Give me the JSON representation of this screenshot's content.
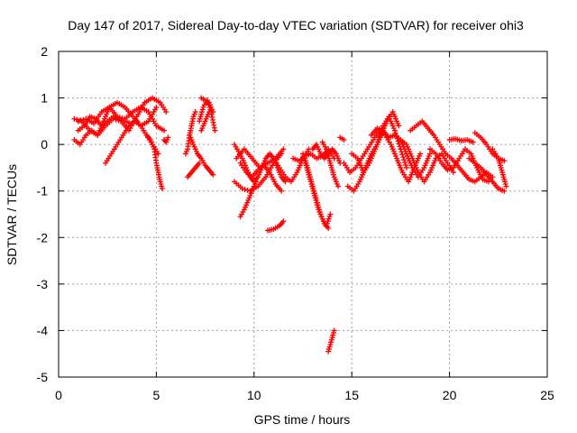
{
  "chart_data": {
    "type": "scatter",
    "title": "Day 147 of 2017, Sidereal Day-to-day VTEC variation (SDTVAR) for receiver ohi3",
    "xlabel": "GPS time / hours",
    "ylabel": "SDTVAR / TECUs",
    "xlim": [
      0,
      25
    ],
    "ylim": [
      -5,
      2
    ],
    "xticks": [
      0,
      5,
      10,
      15,
      20,
      25
    ],
    "yticks": [
      2,
      1,
      0,
      -1,
      -2,
      -3,
      -4,
      -5
    ],
    "grid": true,
    "marker": "+",
    "series_color": "#ff0000",
    "tracks": [
      {
        "x": [
          0.8,
          1.2,
          1.6,
          2.0,
          2.4,
          2.8,
          3.2,
          3.6,
          4.0,
          4.4,
          4.8,
          5.2,
          5.5
        ],
        "y": [
          0.55,
          0.5,
          0.3,
          0.2,
          0.4,
          0.55,
          0.5,
          0.3,
          0.6,
          0.9,
          1.0,
          0.9,
          0.7
        ]
      },
      {
        "x": [
          0.8,
          1.1,
          1.4,
          1.7,
          2.0,
          2.3,
          2.6,
          3.0,
          3.4,
          3.8,
          4.2,
          4.6,
          5.0
        ],
        "y": [
          0.1,
          0.0,
          0.2,
          0.3,
          0.2,
          0.5,
          0.8,
          0.9,
          0.8,
          0.6,
          0.4,
          0.5,
          0.8
        ]
      },
      {
        "x": [
          1.0,
          1.4,
          1.8,
          2.2,
          2.6,
          3.0,
          3.4,
          3.8,
          4.2,
          4.6,
          5.0,
          5.4
        ],
        "y": [
          0.5,
          0.55,
          0.45,
          0.7,
          0.8,
          0.6,
          0.55,
          0.7,
          0.8,
          0.7,
          0.4,
          0.3
        ]
      },
      {
        "x": [
          1.0,
          1.3,
          1.6,
          1.9,
          2.2,
          2.5,
          2.8,
          3.1,
          3.4,
          3.7,
          4.0
        ],
        "y": [
          0.3,
          0.4,
          0.6,
          0.55,
          0.4,
          0.5,
          0.6,
          0.55,
          0.5,
          0.45,
          0.5
        ]
      },
      {
        "x": [
          2.4,
          2.7,
          3.0,
          3.3,
          3.6,
          3.9,
          4.2,
          4.5,
          4.8,
          5.1
        ],
        "y": [
          -0.4,
          -0.2,
          0.0,
          0.2,
          0.4,
          0.5,
          0.4,
          0.2,
          0.0,
          -0.2
        ]
      },
      {
        "x": [
          4.5,
          4.7,
          4.9,
          5.0,
          5.1,
          5.2,
          5.3
        ],
        "y": [
          0.2,
          0.1,
          -0.1,
          -0.4,
          -0.6,
          -0.8,
          -0.95
        ]
      },
      {
        "x": [
          5.4,
          5.5,
          5.6
        ],
        "y": [
          0.1,
          0.05,
          0.15
        ]
      },
      {
        "x": [
          6.5,
          6.6,
          6.7,
          6.8,
          6.9,
          7.0
        ],
        "y": [
          -0.2,
          -0.1,
          0.2,
          0.4,
          0.6,
          0.7
        ]
      },
      {
        "x": [
          6.6,
          6.8,
          7.0,
          7.2
        ],
        "y": [
          -0.7,
          -0.6,
          -0.5,
          -0.4
        ]
      },
      {
        "x": [
          6.7,
          6.9,
          7.1,
          7.3,
          7.5,
          7.7,
          7.9
        ],
        "y": [
          0.2,
          0.0,
          -0.2,
          -0.3,
          -0.45,
          -0.55,
          -0.65
        ]
      },
      {
        "x": [
          7.2,
          7.4,
          7.6,
          7.8,
          8.0
        ],
        "y": [
          0.5,
          0.8,
          0.95,
          0.7,
          0.3
        ]
      },
      {
        "x": [
          7.3,
          7.5,
          7.7,
          7.9
        ],
        "y": [
          1.0,
          0.95,
          0.9,
          0.7
        ]
      },
      {
        "x": [
          7.3,
          7.5,
          7.7
        ],
        "y": [
          0.3,
          0.5,
          0.7
        ]
      },
      {
        "x": [
          9.0,
          9.4,
          9.8,
          10.2,
          10.6,
          11.0,
          11.4
        ],
        "y": [
          -0.8,
          -0.95,
          -1.0,
          -0.9,
          -0.7,
          -0.4,
          -0.2
        ]
      },
      {
        "x": [
          9.1,
          9.5,
          9.9,
          10.3,
          10.7,
          11.1,
          11.5
        ],
        "y": [
          -0.3,
          -0.1,
          -0.3,
          -0.5,
          -0.4,
          -0.3,
          -0.1
        ]
      },
      {
        "x": [
          9.0,
          9.2,
          9.4,
          9.6,
          9.8,
          10.0,
          10.2,
          10.4,
          10.6,
          10.8,
          11.0,
          11.2,
          11.4,
          11.6
        ],
        "y": [
          0.0,
          -0.15,
          -0.3,
          -0.5,
          -0.7,
          -0.8,
          -0.7,
          -0.5,
          -0.3,
          -0.2,
          -0.3,
          -0.5,
          -0.7,
          -0.8
        ]
      },
      {
        "x": [
          9.3,
          9.6,
          9.9,
          10.2,
          10.5,
          10.8,
          11.1,
          11.4
        ],
        "y": [
          -0.4,
          -0.6,
          -0.7,
          -0.55,
          -0.45,
          -0.6,
          -0.85,
          -1.0
        ]
      },
      {
        "x": [
          9.3,
          9.5,
          9.7,
          9.9,
          10.1
        ],
        "y": [
          -1.55,
          -1.4,
          -1.2,
          -1.0,
          -0.8
        ]
      },
      {
        "x": [
          10.7,
          11.0,
          11.3,
          11.5
        ],
        "y": [
          -1.85,
          -1.82,
          -1.75,
          -1.65
        ]
      },
      {
        "x": [
          11.0,
          11.3,
          11.6,
          11.9,
          12.2,
          12.5,
          12.8
        ],
        "y": [
          -0.3,
          -0.5,
          -0.7,
          -0.8,
          -0.6,
          -0.3,
          -0.1
        ]
      },
      {
        "x": [
          12.0,
          12.3,
          12.6,
          12.9,
          13.2,
          13.5,
          13.8,
          14.1
        ],
        "y": [
          -0.3,
          -0.35,
          -0.25,
          -0.2,
          -0.3,
          -0.25,
          -0.1,
          -0.3
        ]
      },
      {
        "x": [
          12.5,
          12.7,
          12.9,
          13.1,
          13.3,
          13.5,
          13.7,
          13.9
        ],
        "y": [
          -0.2,
          -0.5,
          -0.8,
          -1.1,
          -1.4,
          -1.6,
          -1.75,
          -1.5
        ]
      },
      {
        "x": [
          12.6,
          12.8,
          13.0,
          13.2,
          13.4,
          13.6,
          13.8
        ],
        "y": [
          -0.3,
          -0.6,
          -0.9,
          -1.2,
          -1.5,
          -1.7,
          -1.8
        ]
      },
      {
        "x": [
          13.0,
          13.2,
          13.4,
          13.6,
          13.8,
          14.0,
          14.2,
          14.4
        ],
        "y": [
          -0.1,
          0.0,
          -0.2,
          -0.3,
          -0.2,
          -0.1,
          -0.2,
          -0.4
        ]
      },
      {
        "x": [
          13.5,
          13.7,
          13.9,
          14.1,
          14.3
        ],
        "y": [
          0.05,
          -0.1,
          -0.4,
          -0.7,
          -0.9
        ]
      },
      {
        "x": [
          13.8,
          13.9,
          14.0,
          14.1
        ],
        "y": [
          -4.45,
          -4.3,
          -4.15,
          -4.0
        ]
      },
      {
        "x": [
          14.4,
          14.6
        ],
        "y": [
          0.15,
          0.1
        ]
      },
      {
        "x": [
          14.6,
          14.9,
          15.2,
          15.5,
          15.8,
          16.1,
          16.4,
          16.7,
          17.0,
          17.3,
          17.6,
          17.9,
          18.2,
          18.5
        ],
        "y": [
          -0.4,
          -0.6,
          -0.5,
          -0.3,
          -0.1,
          0.1,
          0.3,
          0.2,
          0.0,
          -0.3,
          -0.6,
          -0.8,
          -0.5,
          -0.2
        ]
      },
      {
        "x": [
          14.8,
          15.1,
          15.4,
          15.7,
          16.0,
          16.3,
          16.6,
          16.9,
          17.2,
          17.5,
          17.8
        ],
        "y": [
          -0.9,
          -1.0,
          -0.8,
          -0.5,
          -0.2,
          0.0,
          0.4,
          0.6,
          0.3,
          -0.1,
          -0.5
        ]
      },
      {
        "x": [
          15.0,
          15.3,
          15.6,
          15.9,
          16.2,
          16.5,
          16.8,
          17.1,
          17.4
        ],
        "y": [
          -0.2,
          -0.3,
          -0.6,
          -0.4,
          -0.1,
          0.2,
          0.5,
          0.7,
          0.4
        ]
      },
      {
        "x": [
          16.0,
          16.3,
          16.6,
          16.9,
          17.2,
          17.5,
          17.8,
          18.1,
          18.4,
          18.7,
          19.0
        ],
        "y": [
          0.2,
          0.35,
          0.3,
          0.15,
          0.2,
          0.1,
          -0.2,
          -0.5,
          -0.7,
          -0.5,
          -0.2
        ]
      },
      {
        "x": [
          17.5,
          17.8,
          18.1,
          18.4,
          18.7,
          19.0,
          19.3,
          19.6,
          19.9,
          20.2
        ],
        "y": [
          0.1,
          0.0,
          -0.3,
          -0.6,
          -0.8,
          -0.6,
          -0.3,
          -0.2,
          -0.4,
          -0.6
        ]
      },
      {
        "x": [
          18.0,
          18.3,
          18.6,
          18.9,
          19.2,
          19.5,
          19.8,
          20.1,
          20.4,
          20.7,
          21.0,
          21.3,
          21.6,
          21.9,
          22.2
        ],
        "y": [
          0.3,
          0.4,
          0.5,
          0.35,
          0.2,
          0.0,
          -0.2,
          -0.3,
          -0.45,
          -0.6,
          -0.75,
          -0.8,
          -0.7,
          -0.6,
          -0.7
        ]
      },
      {
        "x": [
          19.0,
          19.3,
          19.6,
          19.9,
          20.2,
          20.5,
          20.8,
          21.1,
          21.4,
          21.7,
          22.0
        ],
        "y": [
          -0.1,
          -0.2,
          -0.4,
          -0.55,
          -0.5,
          -0.3,
          -0.1,
          -0.2,
          -0.5,
          -0.75,
          -0.8
        ]
      },
      {
        "x": [
          20.0,
          20.3,
          20.6,
          20.9,
          21.2
        ],
        "y": [
          0.1,
          0.12,
          0.08,
          0.1,
          0.05
        ]
      },
      {
        "x": [
          21.3,
          21.6,
          21.9,
          22.2,
          22.5,
          22.8
        ],
        "y": [
          0.25,
          0.15,
          0.0,
          -0.2,
          -0.3,
          -0.35
        ]
      },
      {
        "x": [
          21.0,
          21.3,
          21.6,
          21.9,
          22.2,
          22.5,
          22.8
        ],
        "y": [
          -0.3,
          -0.4,
          -0.5,
          -0.65,
          -0.8,
          -0.95,
          -1.0
        ]
      },
      {
        "x": [
          22.2,
          22.5,
          22.7,
          22.9
        ],
        "y": [
          -0.1,
          -0.3,
          -0.6,
          -0.9
        ]
      }
    ]
  }
}
